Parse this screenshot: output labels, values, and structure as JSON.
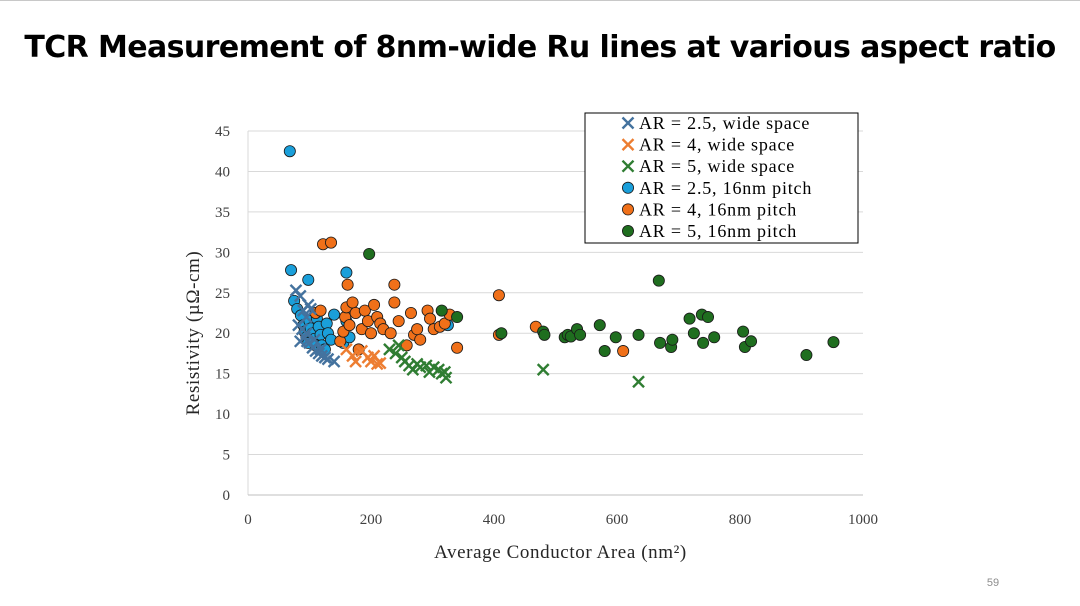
{
  "slide": {
    "title": "TCR Measurement of 8nm-wide Ru lines at various aspect ratio",
    "page_number": "59"
  },
  "chart_data": {
    "type": "scatter",
    "xlabel": "Average Conductor Area (nm²)",
    "ylabel": "Resistivity (µΩ-cm)",
    "xlim": [
      0,
      1000
    ],
    "ylim": [
      0,
      45
    ],
    "xticks": [
      0,
      200,
      400,
      600,
      800,
      1000
    ],
    "yticks": [
      0,
      5,
      10,
      15,
      20,
      25,
      30,
      35,
      40,
      45
    ],
    "grid": "horizontal",
    "legend_position": "top-right",
    "series": [
      {
        "name": "AR = 2.5, wide space",
        "marker": "x",
        "color": "#44729e",
        "points": [
          [
            78,
            25.3
          ],
          [
            85,
            24.6
          ],
          [
            90,
            22.8
          ],
          [
            95,
            22.0
          ],
          [
            98,
            23.5
          ],
          [
            102,
            23.0
          ],
          [
            82,
            21.0
          ],
          [
            88,
            20.5
          ],
          [
            92,
            19.5
          ],
          [
            96,
            19.0
          ],
          [
            100,
            18.8
          ],
          [
            105,
            18.2
          ],
          [
            110,
            17.8
          ],
          [
            115,
            17.5
          ],
          [
            120,
            17.2
          ],
          [
            125,
            17.0
          ],
          [
            130,
            16.8
          ],
          [
            140,
            16.5
          ],
          [
            85,
            19.0
          ],
          [
            95,
            20.0
          ],
          [
            108,
            19.2
          ],
          [
            118,
            18.0
          ]
        ]
      },
      {
        "name": "AR = 4, wide space",
        "marker": "x",
        "color": "#ed7d31",
        "points": [
          [
            160,
            18.0
          ],
          [
            170,
            17.2
          ],
          [
            175,
            16.5
          ],
          [
            185,
            17.8
          ],
          [
            195,
            17.0
          ],
          [
            200,
            16.5
          ],
          [
            205,
            17.2
          ],
          [
            210,
            16.2
          ],
          [
            215,
            16.3
          ]
        ]
      },
      {
        "name": "AR = 5, wide space",
        "marker": "x",
        "color": "#2f7d32",
        "points": [
          [
            230,
            18.0
          ],
          [
            240,
            17.5
          ],
          [
            245,
            18.5
          ],
          [
            250,
            17.0
          ],
          [
            255,
            16.5
          ],
          [
            262,
            16.0
          ],
          [
            268,
            15.5
          ],
          [
            275,
            16.2
          ],
          [
            280,
            15.8
          ],
          [
            290,
            16.0
          ],
          [
            295,
            15.2
          ],
          [
            302,
            15.8
          ],
          [
            310,
            15.5
          ],
          [
            315,
            15.0
          ],
          [
            320,
            15.2
          ],
          [
            322,
            14.5
          ],
          [
            480,
            15.5
          ],
          [
            635,
            14.0
          ]
        ]
      },
      {
        "name": "AR = 2.5, 16nm pitch",
        "marker": "circle",
        "color": "#1a9fda",
        "points": [
          [
            68,
            42.5
          ],
          [
            70,
            27.8
          ],
          [
            98,
            26.6
          ],
          [
            160,
            27.5
          ],
          [
            75,
            24.0
          ],
          [
            80,
            23.0
          ],
          [
            86,
            22.2
          ],
          [
            90,
            21.0
          ],
          [
            92,
            20.2
          ],
          [
            95,
            19.5
          ],
          [
            98,
            18.8
          ],
          [
            100,
            21.5
          ],
          [
            102,
            20.6
          ],
          [
            105,
            20.0
          ],
          [
            108,
            19.3
          ],
          [
            110,
            18.5
          ],
          [
            112,
            21.8
          ],
          [
            115,
            20.8
          ],
          [
            118,
            19.8
          ],
          [
            120,
            18.5
          ],
          [
            125,
            18.0
          ],
          [
            128,
            21.2
          ],
          [
            130,
            20.0
          ],
          [
            135,
            19.2
          ],
          [
            140,
            22.3
          ],
          [
            155,
            18.8
          ],
          [
            160,
            21.5
          ],
          [
            165,
            19.5
          ],
          [
            325,
            21.0
          ]
        ]
      },
      {
        "name": "AR = 4, 16nm pitch",
        "marker": "circle",
        "color": "#f07019",
        "points": [
          [
            122,
            31.0
          ],
          [
            135,
            31.2
          ],
          [
            162,
            26.0
          ],
          [
            238,
            26.0
          ],
          [
            408,
            24.7
          ],
          [
            110,
            22.5
          ],
          [
            118,
            22.8
          ],
          [
            150,
            19.0
          ],
          [
            155,
            20.2
          ],
          [
            158,
            22.0
          ],
          [
            160,
            23.2
          ],
          [
            165,
            21.0
          ],
          [
            170,
            23.8
          ],
          [
            175,
            22.5
          ],
          [
            180,
            18.0
          ],
          [
            185,
            20.5
          ],
          [
            190,
            22.8
          ],
          [
            195,
            21.5
          ],
          [
            200,
            20.0
          ],
          [
            205,
            23.5
          ],
          [
            210,
            22.0
          ],
          [
            215,
            21.2
          ],
          [
            220,
            20.5
          ],
          [
            232,
            20.0
          ],
          [
            238,
            23.8
          ],
          [
            245,
            21.5
          ],
          [
            258,
            18.5
          ],
          [
            265,
            22.5
          ],
          [
            270,
            19.8
          ],
          [
            275,
            20.5
          ],
          [
            280,
            19.2
          ],
          [
            292,
            22.8
          ],
          [
            296,
            21.8
          ],
          [
            302,
            20.5
          ],
          [
            312,
            20.8
          ],
          [
            320,
            21.2
          ],
          [
            328,
            22.3
          ],
          [
            340,
            18.2
          ],
          [
            408,
            19.8
          ],
          [
            468,
            20.8
          ],
          [
            610,
            17.8
          ]
        ]
      },
      {
        "name": "AR = 5, 16nm pitch",
        "marker": "circle",
        "color": "#1f6e1f",
        "points": [
          [
            197,
            29.8
          ],
          [
            668,
            26.5
          ],
          [
            315,
            22.8
          ],
          [
            340,
            22.0
          ],
          [
            412,
            20.0
          ],
          [
            480,
            20.2
          ],
          [
            482,
            19.8
          ],
          [
            515,
            19.5
          ],
          [
            520,
            19.8
          ],
          [
            525,
            19.6
          ],
          [
            535,
            20.5
          ],
          [
            540,
            19.8
          ],
          [
            572,
            21.0
          ],
          [
            580,
            17.8
          ],
          [
            598,
            19.5
          ],
          [
            635,
            19.8
          ],
          [
            670,
            18.8
          ],
          [
            688,
            18.3
          ],
          [
            690,
            19.2
          ],
          [
            718,
            21.8
          ],
          [
            725,
            20.0
          ],
          [
            738,
            22.3
          ],
          [
            740,
            18.8
          ],
          [
            748,
            22.0
          ],
          [
            758,
            19.5
          ],
          [
            805,
            20.2
          ],
          [
            808,
            18.3
          ],
          [
            818,
            19.0
          ],
          [
            908,
            17.3
          ],
          [
            952,
            18.9
          ]
        ]
      }
    ]
  }
}
